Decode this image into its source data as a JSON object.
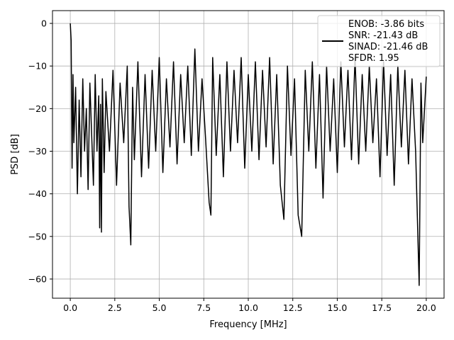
{
  "chart_data": {
    "type": "line",
    "title": "",
    "xlabel": "Frequency [MHz]",
    "ylabel": "PSD [dB]",
    "xlim": [
      -1.0,
      21.0
    ],
    "ylim": [
      -64.5,
      3.0
    ],
    "xticks": [
      0.0,
      2.5,
      5.0,
      7.5,
      10.0,
      12.5,
      15.0,
      17.5,
      20.0
    ],
    "xtick_labels": [
      "0.0",
      "2.5",
      "5.0",
      "7.5",
      "10.0",
      "12.5",
      "15.0",
      "17.5",
      "20.0"
    ],
    "yticks": [
      0,
      -10,
      -20,
      -30,
      -40,
      -50,
      -60
    ],
    "ytick_labels": [
      "0",
      "−10",
      "−20",
      "−30",
      "−40",
      "−50",
      "−60"
    ],
    "grid": true,
    "legend_position": "top-right",
    "series": [
      {
        "name": "ENOB: -3.86 bits\nSNR: -21.43 dB\nSINAD: -21.46 dB\nSFDR: 1.95",
        "legend_lines": [
          "ENOB: -3.86 bits",
          "SNR: -21.43 dB",
          "SINAD: -21.46 dB",
          "SFDR: 1.95"
        ],
        "color": "#000000",
        "x": [
          0.0,
          0.05,
          0.1,
          0.15,
          0.2,
          0.3,
          0.4,
          0.5,
          0.6,
          0.7,
          0.8,
          0.9,
          1.0,
          1.1,
          1.2,
          1.3,
          1.4,
          1.5,
          1.6,
          1.65,
          1.7,
          1.75,
          1.8,
          1.9,
          2.0,
          2.2,
          2.4,
          2.6,
          2.8,
          3.0,
          3.2,
          3.3,
          3.4,
          3.5,
          3.6,
          3.8,
          4.0,
          4.2,
          4.4,
          4.6,
          4.8,
          5.0,
          5.2,
          5.4,
          5.6,
          5.8,
          6.0,
          6.2,
          6.4,
          6.6,
          6.8,
          7.0,
          7.2,
          7.4,
          7.6,
          7.8,
          7.9,
          8.0,
          8.2,
          8.4,
          8.6,
          8.8,
          9.0,
          9.2,
          9.4,
          9.6,
          9.8,
          10.0,
          10.2,
          10.4,
          10.6,
          10.8,
          11.0,
          11.2,
          11.4,
          11.6,
          11.8,
          12.0,
          12.2,
          12.4,
          12.6,
          12.8,
          13.0,
          13.2,
          13.4,
          13.6,
          13.8,
          14.0,
          14.2,
          14.4,
          14.6,
          14.8,
          15.0,
          15.2,
          15.4,
          15.6,
          15.8,
          16.0,
          16.2,
          16.4,
          16.6,
          16.8,
          17.0,
          17.2,
          17.4,
          17.6,
          17.8,
          18.0,
          18.2,
          18.4,
          18.6,
          18.8,
          19.0,
          19.2,
          19.4,
          19.6,
          19.7,
          19.8,
          20.0
        ],
        "y": [
          0.0,
          -4.0,
          -34.0,
          -12.0,
          -28.0,
          -15.0,
          -40.0,
          -18.0,
          -36.0,
          -13.0,
          -30.0,
          -20.0,
          -39.0,
          -14.0,
          -26.0,
          -38.0,
          -12.0,
          -30.0,
          -17.0,
          -48.0,
          -19.0,
          -49.0,
          -13.0,
          -35.0,
          -16.0,
          -30.0,
          -11.0,
          -38.0,
          -14.0,
          -28.0,
          -10.0,
          -43.0,
          -52.0,
          -15.0,
          -32.0,
          -9.0,
          -36.0,
          -12.0,
          -34.0,
          -11.0,
          -30.0,
          -8.0,
          -35.0,
          -13.0,
          -29.0,
          -9.0,
          -33.0,
          -12.0,
          -28.0,
          -10.0,
          -31.0,
          -6.0,
          -30.0,
          -13.0,
          -27.0,
          -42.0,
          -45.0,
          -8.0,
          -31.0,
          -12.0,
          -36.0,
          -9.0,
          -30.0,
          -11.0,
          -28.0,
          -8.0,
          -34.0,
          -12.0,
          -30.0,
          -9.0,
          -32.0,
          -11.0,
          -29.0,
          -8.0,
          -33.0,
          -12.0,
          -38.0,
          -46.0,
          -10.0,
          -31.0,
          -13.0,
          -45.0,
          -50.0,
          -11.0,
          -30.0,
          -9.0,
          -34.0,
          -12.0,
          -41.0,
          -10.0,
          -30.0,
          -13.0,
          -35.0,
          -9.0,
          -29.0,
          -11.0,
          -32.0,
          -8.0,
          -33.0,
          -12.0,
          -30.0,
          -10.0,
          -28.0,
          -13.0,
          -36.0,
          -9.0,
          -31.0,
          -12.0,
          -38.0,
          -10.0,
          -29.0,
          -11.0,
          -33.0,
          -13.0,
          -30.0,
          -61.5,
          -14.0,
          -28.0,
          -12.5
        ]
      }
    ]
  }
}
